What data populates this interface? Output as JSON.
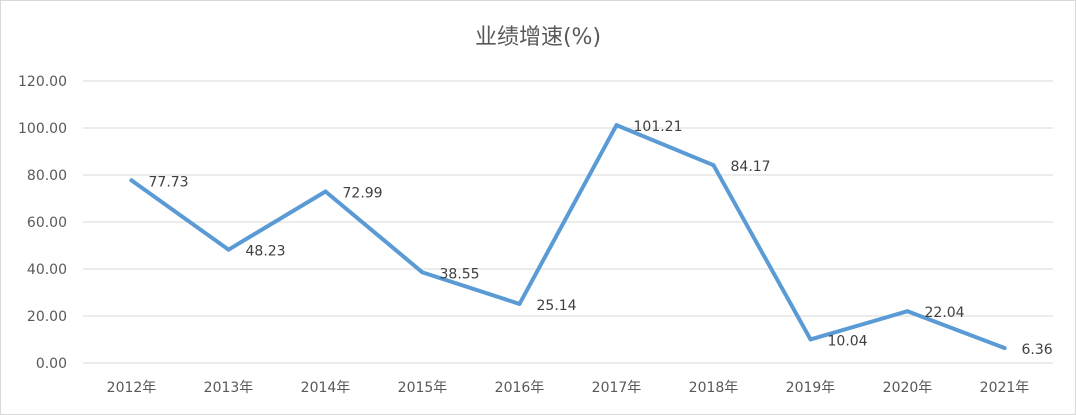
{
  "chart_data": {
    "type": "line",
    "title": "业绩增速(%)",
    "xlabel": "",
    "ylabel": "",
    "categories": [
      "2012年",
      "2013年",
      "2014年",
      "2015年",
      "2016年",
      "2017年",
      "2018年",
      "2019年",
      "2020年",
      "2021年"
    ],
    "series": [
      {
        "values": [
          77.73,
          48.23,
          72.99,
          38.55,
          25.14,
          101.21,
          84.17,
          10.04,
          22.04,
          6.36
        ],
        "labels": [
          "77.73",
          "48.23",
          "72.99",
          "38.55",
          "25.14",
          "101.21",
          "84.17",
          "10.04",
          "22.04",
          "6.36"
        ],
        "color": "#5b9bd5"
      }
    ],
    "ylim": [
      0,
      120
    ],
    "yticks": [
      "0.00",
      "20.00",
      "40.00",
      "60.00",
      "80.00",
      "100.00",
      "120.00"
    ],
    "grid": true,
    "legend": "none",
    "colors": {
      "gridline": "#d9d9d9",
      "text": "#595959"
    }
  }
}
